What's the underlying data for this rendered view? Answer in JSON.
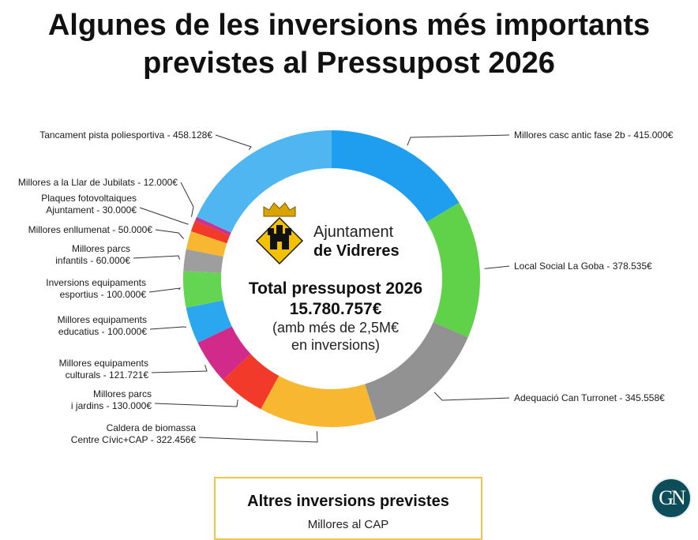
{
  "title": {
    "line1": "Algunes de les inversions més importants",
    "line2": "previstes al Pressupost 2026"
  },
  "logo": {
    "name_line1": "Ajuntament",
    "name_line2": "de Vidreres",
    "colors": {
      "shield": "#f2c200",
      "tower": "#111111",
      "crown": "#d9a300"
    }
  },
  "center": {
    "line1": "Total pressupost 2026",
    "line2": "15.780.757€",
    "line3": "(amb més de 2,5M€",
    "line4": "en inversions)"
  },
  "chart_data": {
    "type": "pie",
    "donut": true,
    "unit": "€",
    "slices": [
      {
        "label": [
          "Millores casc antic fase 2b - 415.000€"
        ],
        "value": 415000,
        "color": "#1f9ef0"
      },
      {
        "label": [
          "Local Social La Goba - 378.535€"
        ],
        "value": 378535,
        "color": "#5fd24a"
      },
      {
        "label": [
          "Adequació Can Turronet - 345.558€"
        ],
        "value": 345558,
        "color": "#929292"
      },
      {
        "label": [
          "Caldera de biomassa",
          "Centre Cívic+CAP - 322.456€"
        ],
        "value": 322456,
        "color": "#f7b731"
      },
      {
        "label": [
          "Millores parcs",
          "i jardins - 130.000€"
        ],
        "value": 130000,
        "color": "#f23a2a"
      },
      {
        "label": [
          "Millores equipaments",
          "culturals - 121.721€"
        ],
        "value": 121721,
        "color": "#d12a8a"
      },
      {
        "label": [
          "Millores equipaments",
          "educatius - 100.000€"
        ],
        "value": 100000,
        "color": "#2aa7ee"
      },
      {
        "label": [
          "Inversions equipaments",
          "esportius - 100.000€"
        ],
        "value": 100000,
        "color": "#63d553"
      },
      {
        "label": [
          "Millores parcs",
          "infantils - 60.000€"
        ],
        "value": 60000,
        "color": "#9e9e9e"
      },
      {
        "label": [
          "Millores enllumenat - 50.000€"
        ],
        "value": 50000,
        "color": "#f7b731"
      },
      {
        "label": [
          "Plaques fotovoltaiques",
          "Ajuntament - 30.000€"
        ],
        "value": 30000,
        "color": "#f23a2a"
      },
      {
        "label": [
          "Millores a la Llar de Jubilats - 12.000€"
        ],
        "value": 12000,
        "color": "#c9348e"
      },
      {
        "label": [
          "Tancament pista poliesportiva - 458.128€"
        ],
        "value": 458128,
        "color": "#4fb6f2"
      }
    ]
  },
  "other": {
    "title": "Altres inversions previstes",
    "first_item": "Millores al CAP"
  },
  "badge": {
    "text": "GN",
    "color": "#0d4d5a"
  }
}
